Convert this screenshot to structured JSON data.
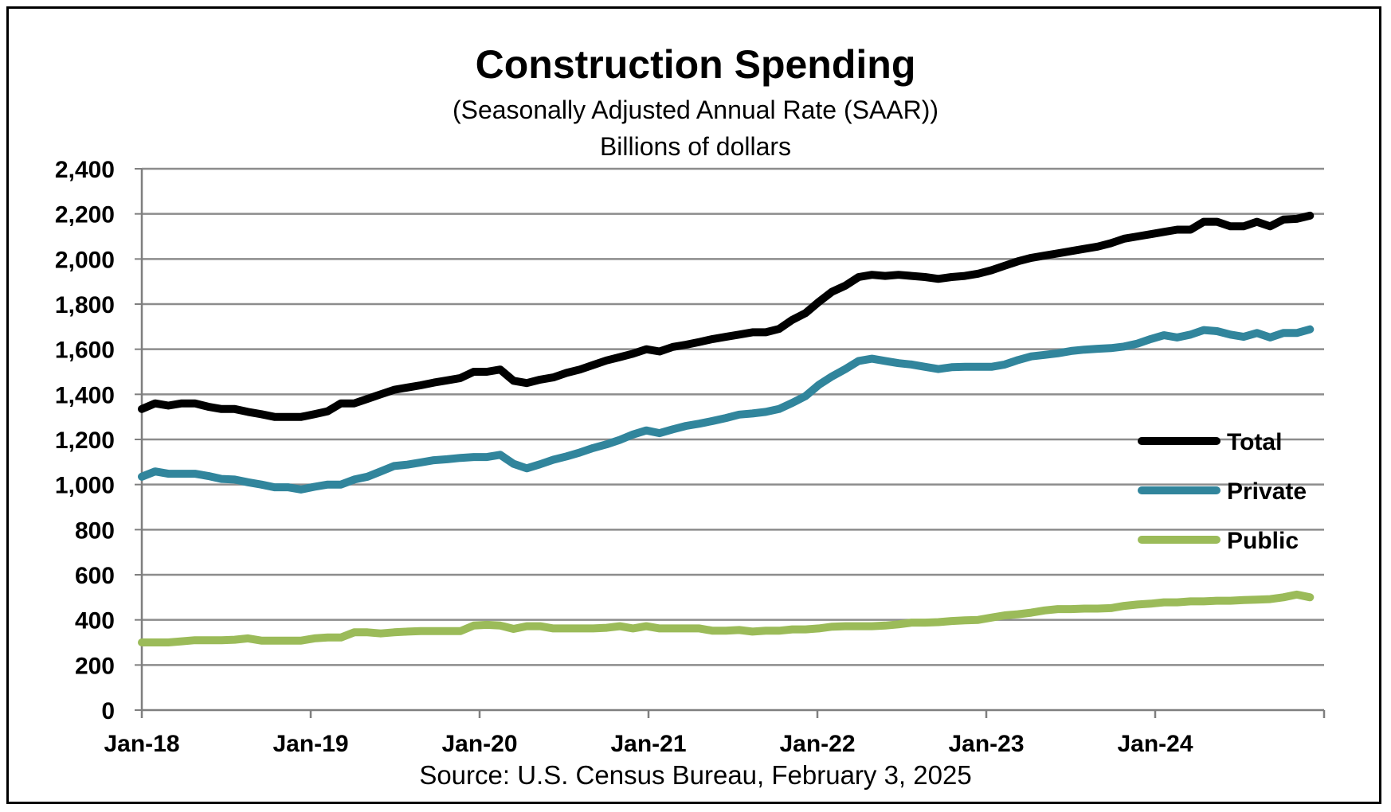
{
  "chart_data": {
    "type": "line",
    "title": "Construction Spending",
    "subtitle": "(Seasonally Adjusted Annual Rate (SAAR))",
    "subtitle2": "Billions of dollars",
    "source": "Source: U.S. Census Bureau, February 3, 2025",
    "xlabel": "",
    "ylabel": "",
    "ylim": [
      0,
      2400
    ],
    "yticks": [
      "0",
      "200",
      "400",
      "600",
      "800",
      "1,000",
      "1,200",
      "1,400",
      "1,600",
      "1,800",
      "2,000",
      "2,200",
      "2,400"
    ],
    "xticks": [
      "Jan-18",
      "Jan-19",
      "Jan-20",
      "Jan-21",
      "Jan-22",
      "Jan-23",
      "Jan-24"
    ],
    "x_start": "Jan-18",
    "x_end": "Dec-24",
    "grid": true,
    "legend_position": "right",
    "series": [
      {
        "name": "Total",
        "color": "#000000",
        "values": [
          1335,
          1360,
          1350,
          1360,
          1360,
          1345,
          1335,
          1335,
          1322,
          1312,
          1300,
          1300,
          1300,
          1312,
          1325,
          1360,
          1360,
          1380,
          1400,
          1420,
          1430,
          1440,
          1452,
          1462,
          1472,
          1500,
          1500,
          1510,
          1460,
          1450,
          1465,
          1475,
          1495,
          1510,
          1530,
          1550,
          1565,
          1580,
          1600,
          1590,
          1610,
          1620,
          1632,
          1645,
          1655,
          1665,
          1675,
          1675,
          1690,
          1730,
          1760,
          1810,
          1855,
          1882,
          1920,
          1930,
          1925,
          1930,
          1925,
          1920,
          1912,
          1920,
          1925,
          1935,
          1950,
          1970,
          1990,
          2005,
          2015,
          2025,
          2035,
          2045,
          2055,
          2070,
          2090,
          2100,
          2110,
          2120,
          2130,
          2130,
          2165,
          2165,
          2145,
          2145,
          2165,
          2145,
          2175,
          2178,
          2192
        ]
      },
      {
        "name": "Private",
        "color": "#31859C",
        "values": [
          1035,
          1058,
          1048,
          1048,
          1048,
          1038,
          1025,
          1022,
          1010,
          1000,
          988,
          988,
          978,
          990,
          1000,
          1000,
          1022,
          1035,
          1058,
          1082,
          1088,
          1098,
          1108,
          1112,
          1118,
          1122,
          1122,
          1132,
          1092,
          1072,
          1090,
          1110,
          1125,
          1142,
          1162,
          1178,
          1198,
          1222,
          1240,
          1228,
          1245,
          1260,
          1270,
          1282,
          1295,
          1310,
          1315,
          1322,
          1335,
          1362,
          1392,
          1442,
          1480,
          1512,
          1548,
          1558,
          1548,
          1538,
          1532,
          1522,
          1512,
          1520,
          1522,
          1522,
          1522,
          1532,
          1552,
          1568,
          1575,
          1582,
          1592,
          1598,
          1602,
          1605,
          1612,
          1625,
          1645,
          1662,
          1652,
          1665,
          1685,
          1680,
          1665,
          1655,
          1672,
          1652,
          1672,
          1672,
          1688
        ]
      },
      {
        "name": "Public",
        "color": "#9BBB59",
        "values": [
          300,
          300,
          300,
          305,
          310,
          310,
          310,
          312,
          318,
          308,
          308,
          308,
          308,
          318,
          322,
          322,
          345,
          345,
          340,
          345,
          348,
          350,
          350,
          350,
          350,
          375,
          378,
          375,
          360,
          372,
          372,
          362,
          362,
          362,
          362,
          365,
          372,
          362,
          372,
          362,
          362,
          362,
          362,
          352,
          352,
          355,
          348,
          352,
          352,
          358,
          358,
          362,
          370,
          372,
          372,
          372,
          375,
          380,
          388,
          388,
          390,
          395,
          398,
          400,
          410,
          420,
          425,
          432,
          442,
          448,
          448,
          450,
          450,
          452,
          462,
          468,
          472,
          478,
          478,
          482,
          482,
          485,
          485,
          488,
          490,
          492,
          500,
          512,
          500
        ]
      }
    ]
  }
}
